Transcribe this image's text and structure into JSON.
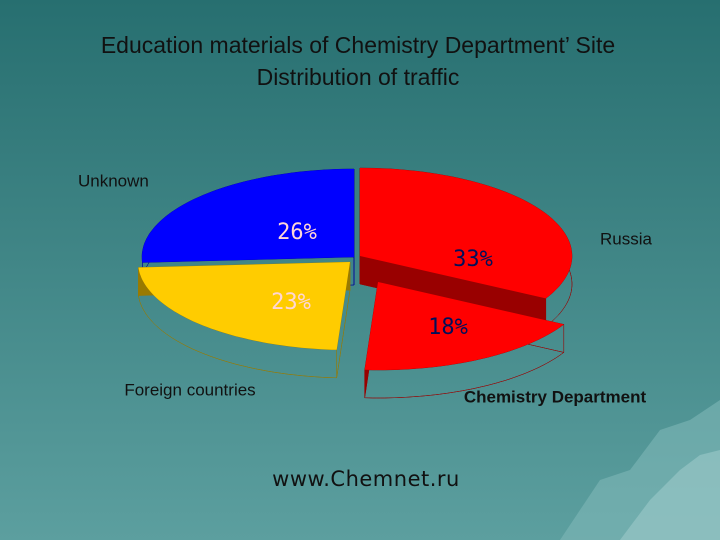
{
  "chart_data": {
    "type": "pie",
    "title": "Education materials of Chemistry Department’ Site",
    "subtitle": "Distribution of traffic",
    "categories": [
      "Russia",
      "Chemistry Department",
      "Foreign countries",
      "Unknown"
    ],
    "values": [
      33,
      18,
      23,
      26
    ],
    "value_labels": [
      "33%",
      "18%",
      "23%",
      "26%"
    ],
    "colors": [
      "#ff0000",
      "#ff0000",
      "#ffcc00",
      "#0000ff"
    ],
    "footer": "www.Chemnet.ru"
  }
}
